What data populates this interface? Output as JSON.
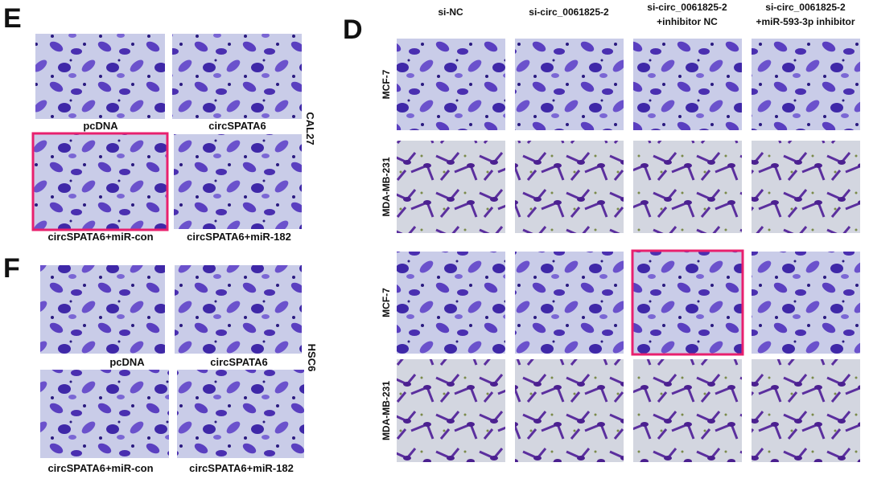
{
  "panels": [
    {
      "label": "E",
      "cell_line": "CAL27",
      "captions": [
        "pcDNA",
        "circSPATA6",
        "circSPATA6+miR-con",
        "circSPATA6+miR-182"
      ]
    },
    {
      "label": "F",
      "cell_line": "HSC6",
      "captions": [
        "pcDNA",
        "circSPATA6",
        "circSPATA6+miR-con",
        "circSPATA6+miR-182"
      ]
    },
    {
      "label": "D",
      "columns": [
        [
          "si-NC"
        ],
        [
          "si-circ_0061825-2"
        ],
        [
          "si-circ_0061825-2",
          "+inhibitor NC"
        ],
        [
          "si-circ_0061825-2",
          "+miR-593-3p inhibitor"
        ]
      ],
      "rows": [
        "MCF-7",
        "MDA-MB-231",
        "MCF-7",
        "MDA-MB-231"
      ]
    }
  ]
}
